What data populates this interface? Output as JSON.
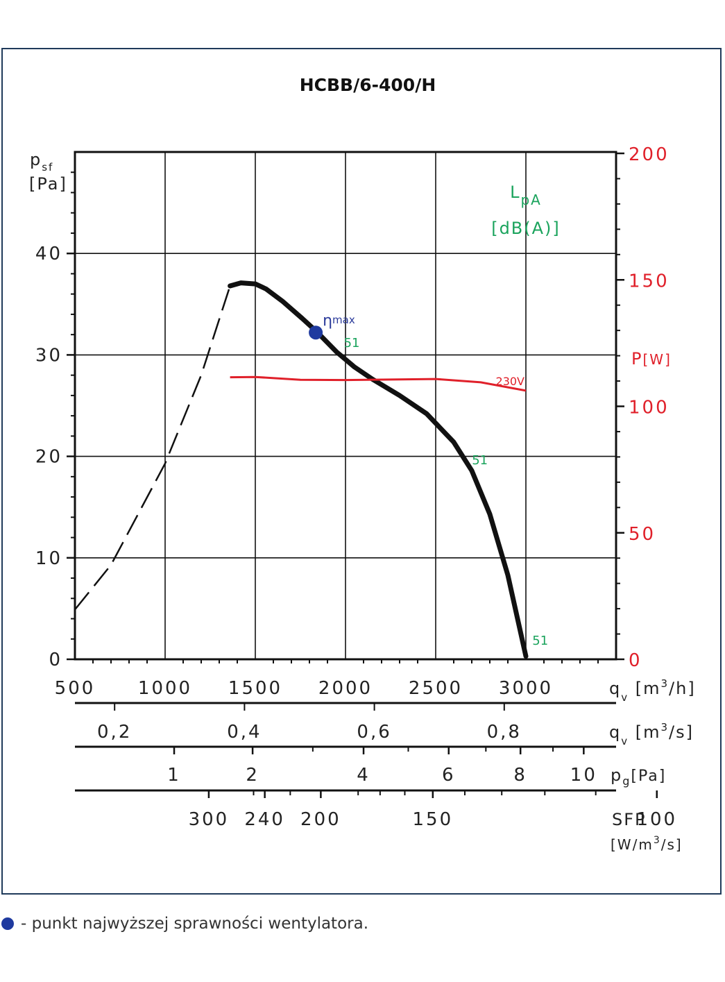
{
  "legend": {
    "dot_color": "#1f3a9f",
    "text": "- punkt najwyższej sprawności wentylatora."
  },
  "chart_data": {
    "type": "line",
    "title": "HCBB/6-400/H",
    "x_axis": {
      "label_main": "q",
      "label_sub": "v",
      "label_unit": " [m",
      "label_sup": "3",
      "label_tail": "/h]",
      "range": [
        500,
        3500
      ],
      "ticks": [
        500,
        1000,
        1500,
        2000,
        2500,
        3000
      ]
    },
    "y_axis": {
      "label_main": "p",
      "label_sub": "sf",
      "label_unit": "[Pa]",
      "range": [
        0,
        50
      ],
      "ticks": [
        0,
        10,
        20,
        30,
        40
      ]
    },
    "y2_axis": {
      "label": "P",
      "label_unit": "[W]",
      "color": "#e0202a",
      "range": [
        0,
        200
      ],
      "ticks": [
        0,
        50,
        100,
        150,
        200
      ]
    },
    "lpa_label": {
      "main": "L",
      "sub": "pA",
      "unit": "[dB(A)]",
      "color": "#1aa35c"
    },
    "pressure_curve": {
      "color": "#111111",
      "dashed": [
        [
          500,
          4.9
        ],
        [
          700,
          9.3
        ],
        [
          1000,
          19.3
        ],
        [
          1200,
          28.0
        ],
        [
          1360,
          36.8
        ]
      ],
      "solid": [
        [
          1360,
          36.8
        ],
        [
          1420,
          37.1
        ],
        [
          1500,
          37.0
        ],
        [
          1560,
          36.5
        ],
        [
          1650,
          35.3
        ],
        [
          1760,
          33.6
        ],
        [
          1840,
          32.3
        ],
        [
          1950,
          30.3
        ],
        [
          2050,
          28.8
        ],
        [
          2150,
          27.6
        ],
        [
          2300,
          26.0
        ],
        [
          2450,
          24.2
        ],
        [
          2600,
          21.4
        ],
        [
          2700,
          18.6
        ],
        [
          2800,
          14.3
        ],
        [
          2900,
          8.3
        ],
        [
          3000,
          0.3
        ]
      ]
    },
    "power_curve": {
      "color": "#e0202a",
      "label": "230V",
      "points": [
        [
          1360,
          111.5
        ],
        [
          1500,
          111.6
        ],
        [
          1750,
          110.5
        ],
        [
          2000,
          110.4
        ],
        [
          2250,
          110.6
        ],
        [
          2500,
          110.8
        ],
        [
          2750,
          109.5
        ],
        [
          3000,
          106.2
        ]
      ]
    },
    "eta_max": {
      "x": 1835,
      "y": 32.2,
      "color": "#1f3a9f",
      "label_eta": "η",
      "label_sub": "max",
      "lpa": "51"
    },
    "lpa_points": [
      {
        "x": 1960,
        "y": 31.6,
        "value": "51"
      },
      {
        "x": 2670,
        "y": 18.4,
        "value": "51"
      },
      {
        "x": 3005,
        "y": 0.6,
        "value": "51"
      }
    ],
    "scale_qv_m3s": {
      "label_main": "q",
      "label_sub": "v",
      "label_unit": " [m",
      "label_sup": "3",
      "label_tail": "/s]",
      "labels": [
        "0,2",
        "0,4",
        "0,6",
        "0,8"
      ],
      "values": [
        0.2,
        0.4,
        0.6,
        0.8
      ],
      "minor": [
        0.15,
        0.25,
        0.3,
        0.35,
        0.45,
        0.5,
        0.55,
        0.65,
        0.7,
        0.75,
        0.85,
        0.9
      ]
    },
    "scale_pg": {
      "label_main": "p",
      "label_sub": "g",
      "label_unit": "[Pa]",
      "labels": [
        "1",
        "2",
        "4",
        "6",
        "8",
        "10"
      ],
      "values": [
        1,
        2,
        4,
        6,
        8,
        10
      ],
      "minor": [
        3,
        5,
        7,
        9
      ]
    },
    "scale_sfp": {
      "label_main": "SFP",
      "label_unit_a": "[W/m",
      "label_sup": "3",
      "label_unit_b": "/s]",
      "labels": [
        "300",
        "240",
        "200",
        "150",
        "100"
      ],
      "values": [
        300,
        240,
        200,
        150,
        100
      ],
      "minor": [
        250,
        220,
        180,
        170,
        160,
        140,
        130,
        120,
        110
      ]
    }
  }
}
